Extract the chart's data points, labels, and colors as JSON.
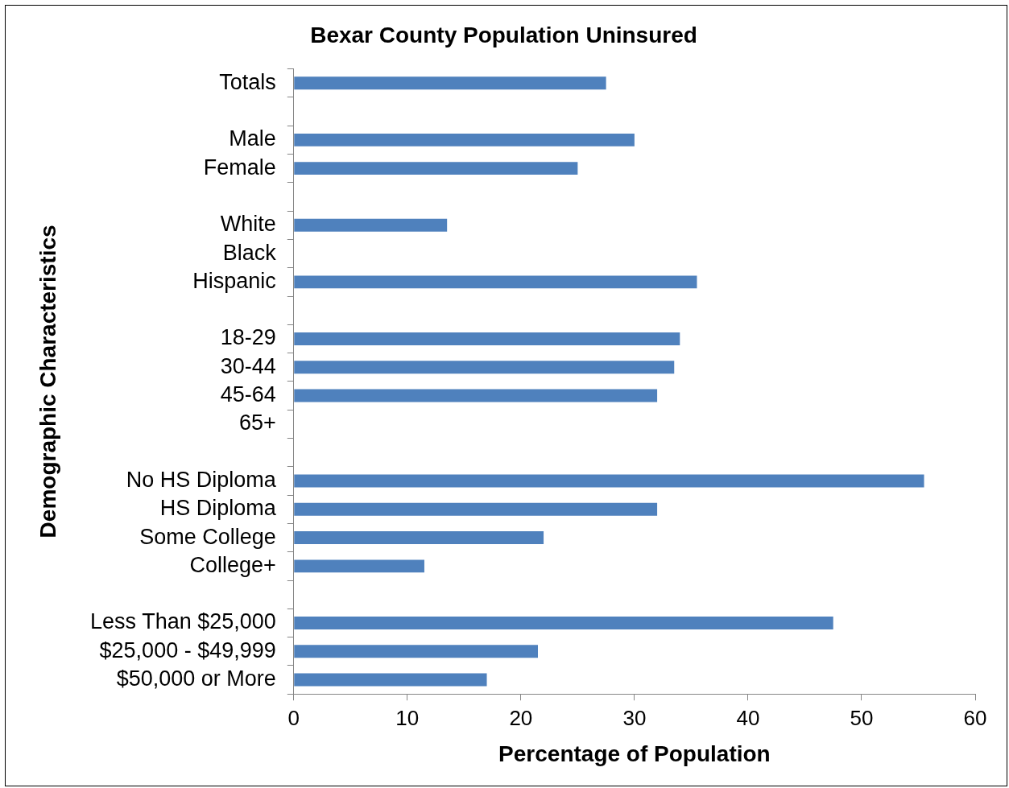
{
  "chart_data": {
    "type": "bar",
    "orientation": "horizontal",
    "title": "Bexar County Population Uninsured",
    "xlabel": "Percentage of Population",
    "ylabel": "Demographic Characteristics",
    "categories": [
      "Totals",
      null,
      "Male",
      "Female",
      null,
      "White",
      "Black",
      "Hispanic",
      null,
      "18-29",
      "30-44",
      "45-64",
      "65+",
      null,
      "No HS Diploma",
      "HS Diploma",
      "Some College",
      "College+",
      null,
      "Less Than $25,000",
      "$25,000 - $49,999",
      "$50,000 or More"
    ],
    "values": [
      27.5,
      null,
      30,
      25,
      null,
      13.5,
      null,
      35.5,
      null,
      34,
      33.5,
      32,
      null,
      null,
      55.5,
      32,
      22,
      11.5,
      null,
      47.5,
      21.5,
      17
    ],
    "color": "#4f81bd",
    "xlim": [
      0,
      60
    ],
    "xticks": [
      0,
      10,
      20,
      30,
      40,
      50,
      60
    ],
    "grid": false,
    "legend": false
  }
}
